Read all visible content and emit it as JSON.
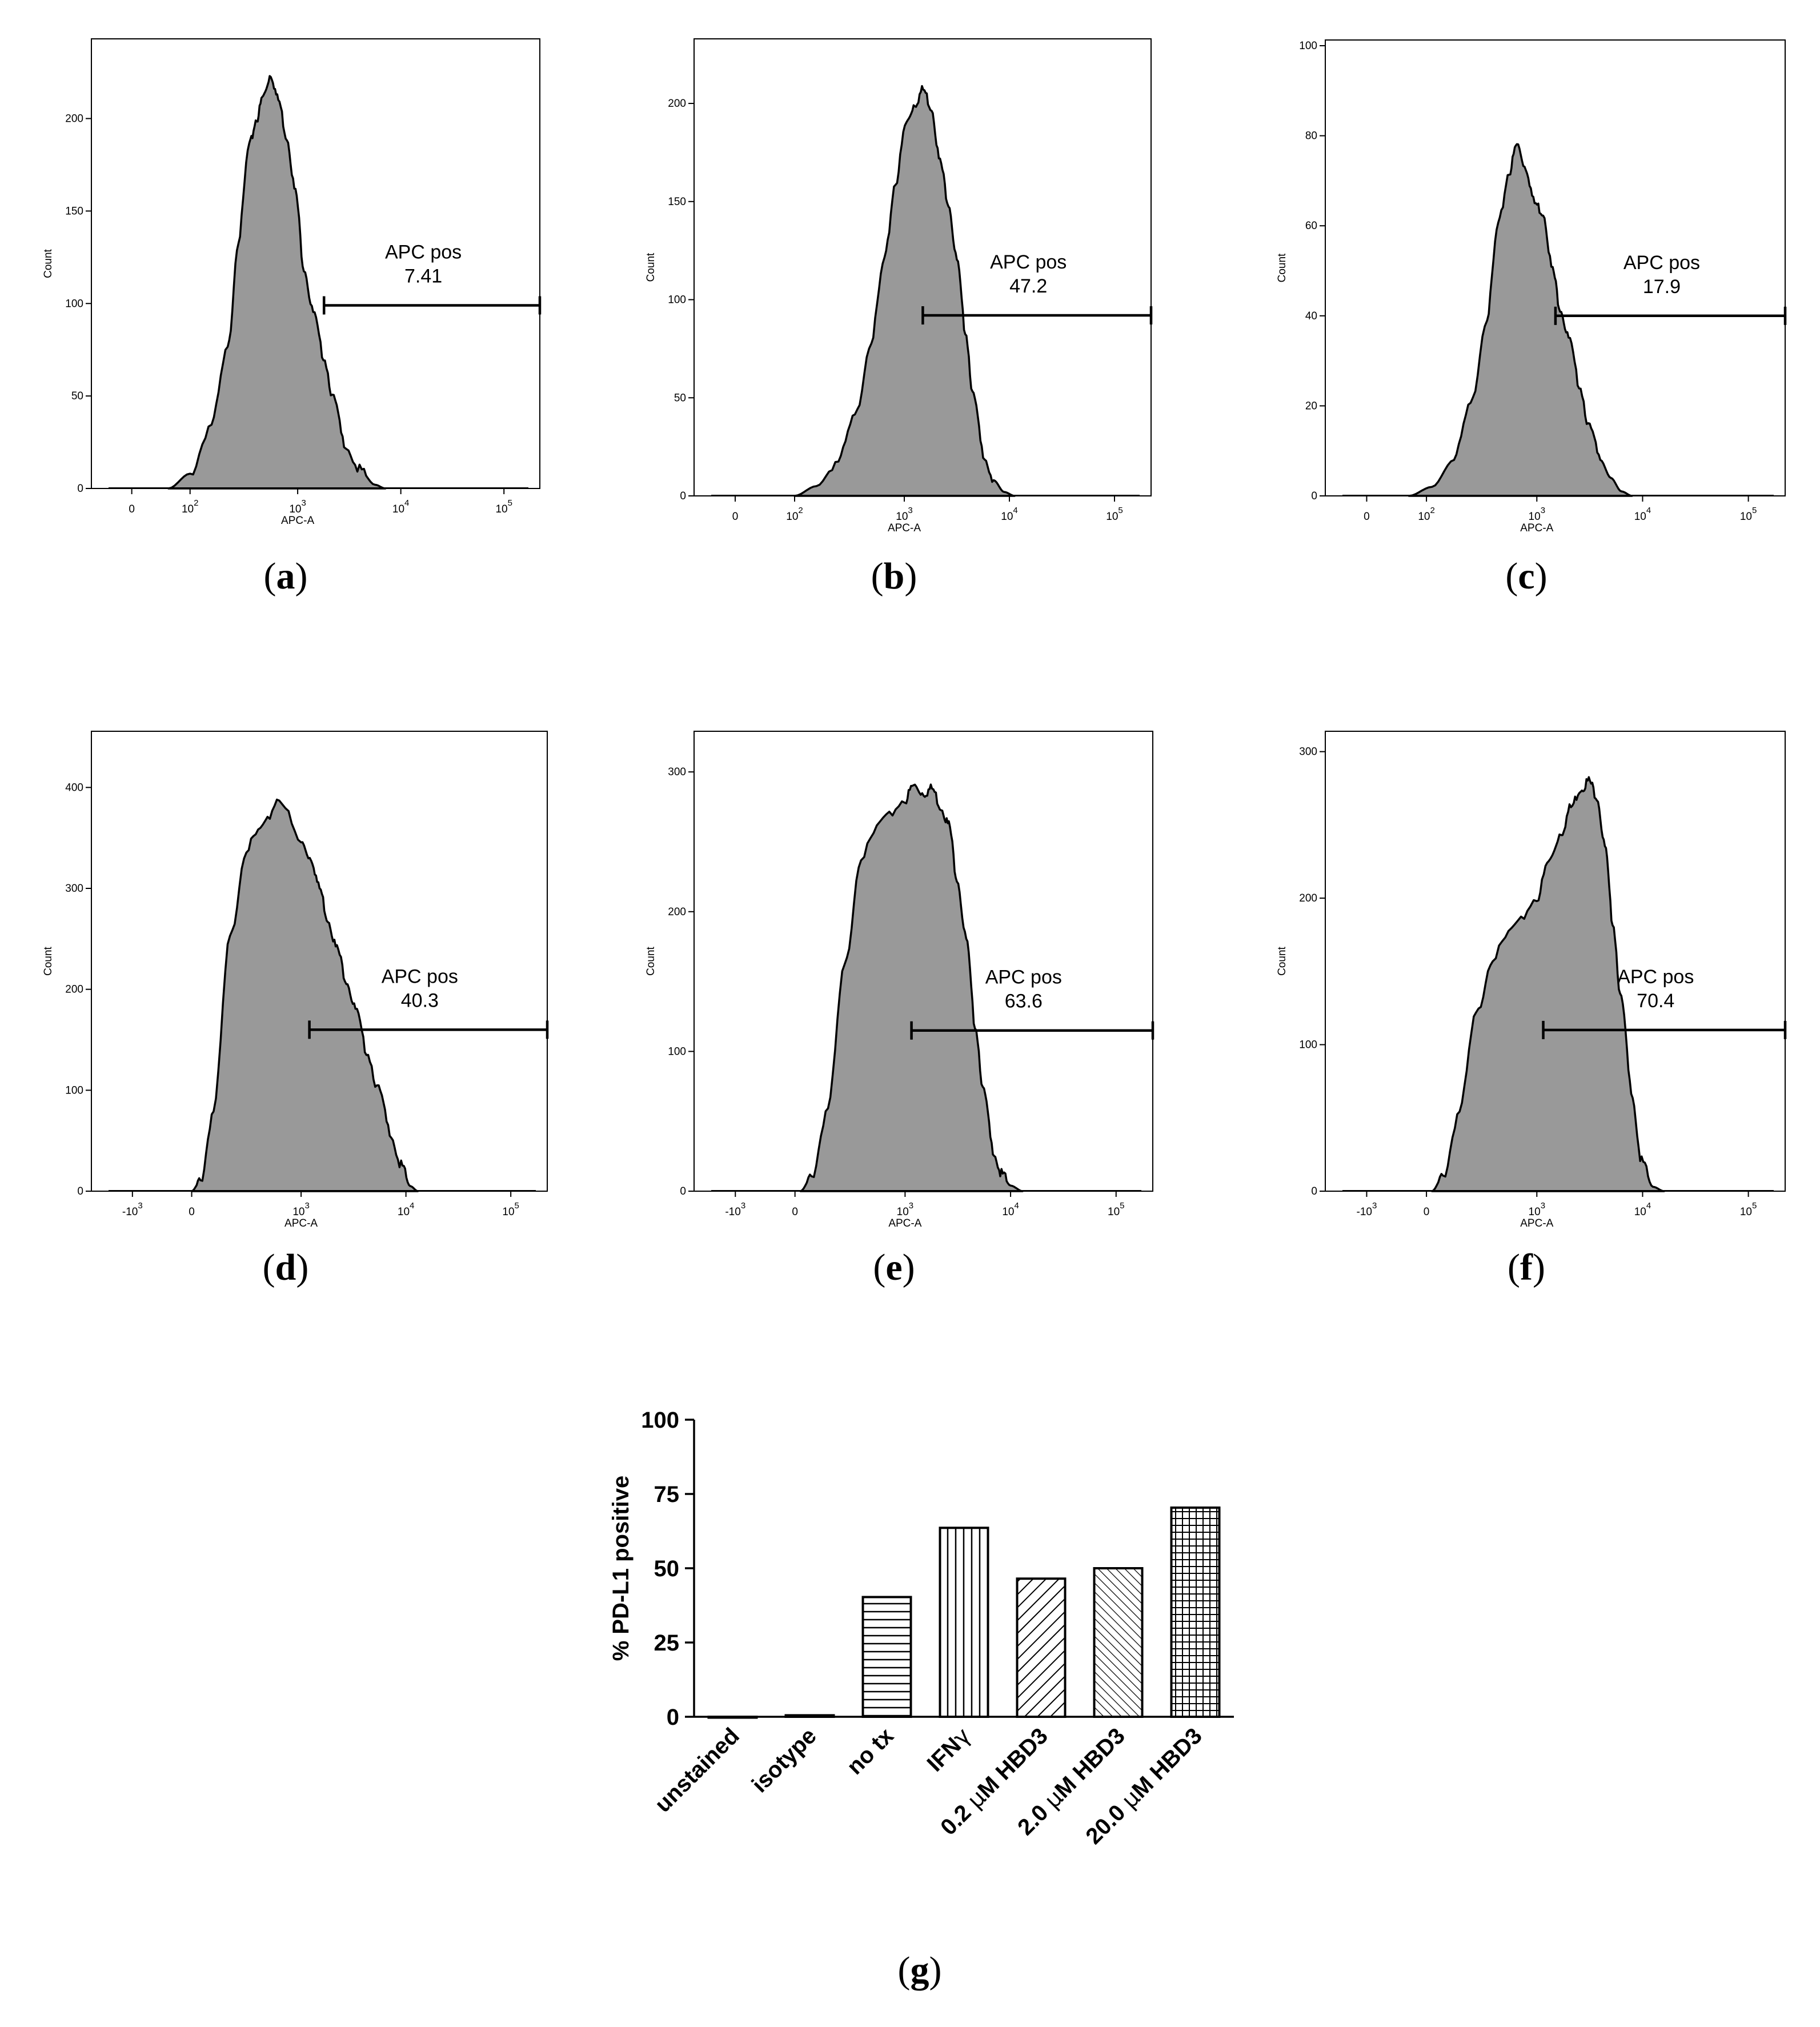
{
  "figure": {
    "panels": [
      {
        "label_open": "(",
        "label_letter": "a",
        "label_close": ")"
      },
      {
        "label_open": "(",
        "label_letter": "b",
        "label_close": ")"
      },
      {
        "label_open": "(",
        "label_letter": "c",
        "label_close": ")"
      },
      {
        "label_open": "(",
        "label_letter": "d",
        "label_close": ")"
      },
      {
        "label_open": "(",
        "label_letter": "e",
        "label_close": ")"
      },
      {
        "label_open": "(",
        "label_letter": "f",
        "label_close": ")"
      },
      {
        "label_open": "(",
        "label_letter": "g",
        "label_close": ")"
      }
    ]
  },
  "colors": {
    "histogram_fill": "#999999",
    "outline": "#000000",
    "bar_fill": "#ffffff"
  },
  "chart_data": [
    {
      "type": "area",
      "panel": "a",
      "xlabel": "APC-A",
      "ylabel": "Count",
      "x_scale": "biexponential",
      "x_ticks": [
        {
          "value": 0,
          "base": "0",
          "exp": ""
        },
        {
          "value": 100,
          "base": "10",
          "exp": "2"
        },
        {
          "value": 1000,
          "base": "10",
          "exp": "3"
        },
        {
          "value": 10000,
          "base": "10",
          "exp": "4"
        },
        {
          "value": 100000,
          "base": "10",
          "exp": "5"
        }
      ],
      "y_ticks": [
        0,
        50,
        100,
        150,
        200
      ],
      "ylim": [
        0,
        240
      ],
      "gate_name": "APC pos",
      "gate_value": "7.41",
      "gate_range": [
        1800,
        250000
      ],
      "gate_y": 99,
      "curve": {
        "x_log": [
          1.8,
          2.0,
          2.2,
          2.35,
          2.45,
          2.55,
          2.62,
          2.68,
          2.75,
          2.82,
          2.9,
          2.98,
          3.06,
          3.15,
          3.25,
          3.35,
          3.45,
          3.6,
          3.75,
          3.85
        ],
        "counts": [
          0,
          8,
          35,
          75,
          135,
          185,
          200,
          212,
          224,
          210,
          190,
          160,
          120,
          95,
          72,
          48,
          25,
          10,
          2,
          0
        ]
      }
    },
    {
      "type": "area",
      "panel": "b",
      "xlabel": "APC-A",
      "ylabel": "Count",
      "x_scale": "biexponential",
      "x_ticks": [
        {
          "value": 0,
          "base": "0",
          "exp": ""
        },
        {
          "value": 100,
          "base": "10",
          "exp": "2"
        },
        {
          "value": 1000,
          "base": "10",
          "exp": "3"
        },
        {
          "value": 10000,
          "base": "10",
          "exp": "4"
        },
        {
          "value": 100000,
          "base": "10",
          "exp": "5"
        }
      ],
      "y_ticks": [
        0,
        50,
        100,
        150,
        200
      ],
      "ylim": [
        0,
        230
      ],
      "gate_name": "APC pos",
      "gate_value": "47.2",
      "gate_range": [
        1500,
        250000
      ],
      "gate_y": 92,
      "curve": {
        "x_log": [
          2.0,
          2.2,
          2.4,
          2.55,
          2.7,
          2.82,
          2.92,
          3.02,
          3.1,
          3.18,
          3.26,
          3.34,
          3.42,
          3.5,
          3.58,
          3.66,
          3.75,
          3.85,
          3.95,
          4.05
        ],
        "counts": [
          0,
          5,
          18,
          40,
          80,
          120,
          160,
          190,
          200,
          207,
          198,
          170,
          150,
          120,
          85,
          50,
          22,
          8,
          2,
          0
        ]
      }
    },
    {
      "type": "area",
      "panel": "c",
      "xlabel": "APC-A",
      "ylabel": "Count",
      "x_scale": "biexponential",
      "x_ticks": [
        {
          "value": 0,
          "base": "0",
          "exp": ""
        },
        {
          "value": 100,
          "base": "10",
          "exp": "2"
        },
        {
          "value": 1000,
          "base": "10",
          "exp": "3"
        },
        {
          "value": 10000,
          "base": "10",
          "exp": "4"
        },
        {
          "value": 100000,
          "base": "10",
          "exp": "5"
        }
      ],
      "y_ticks": [
        0,
        20,
        40,
        60,
        80,
        100
      ],
      "ylim": [
        0,
        100
      ],
      "gate_name": "APC pos",
      "gate_value": "17.9",
      "gate_range": [
        1500,
        250000
      ],
      "gate_y": 40,
      "curve": {
        "x_log": [
          1.85,
          2.05,
          2.25,
          2.4,
          2.55,
          2.65,
          2.75,
          2.82,
          2.9,
          2.98,
          3.06,
          3.15,
          3.22,
          3.3,
          3.4,
          3.5,
          3.6,
          3.7,
          3.8,
          3.9
        ],
        "counts": [
          0,
          2,
          8,
          20,
          40,
          60,
          72,
          78,
          73,
          65,
          63,
          50,
          42,
          35,
          25,
          15,
          8,
          4,
          1,
          0
        ]
      }
    },
    {
      "type": "area",
      "panel": "d",
      "xlabel": "APC-A",
      "ylabel": "Count",
      "x_scale": "biexponential",
      "x_ticks": [
        {
          "value": -1000,
          "base": "-10",
          "exp": "3"
        },
        {
          "value": 0,
          "base": "0",
          "exp": ""
        },
        {
          "value": 1000,
          "base": "10",
          "exp": "3"
        },
        {
          "value": 10000,
          "base": "10",
          "exp": "4"
        },
        {
          "value": 100000,
          "base": "10",
          "exp": "5"
        }
      ],
      "y_ticks": [
        0,
        100,
        200,
        300,
        400
      ],
      "ylim": [
        0,
        450
      ],
      "gate_name": "APC pos",
      "gate_value": "40.3",
      "gate_range": [
        1200,
        250000
      ],
      "gate_y": 160,
      "curve": {
        "x_lin": [
          0,
          80,
          200,
          350,
          500,
          650,
          800,
          1000,
          1250,
          1500,
          1800,
          2200,
          2700,
          3300,
          4200,
          5500,
          7000,
          9000,
          11000,
          13000
        ],
        "counts": [
          0,
          10,
          80,
          250,
          340,
          360,
          390,
          345,
          330,
          300,
          270,
          240,
          210,
          180,
          140,
          100,
          60,
          25,
          5,
          0
        ]
      }
    },
    {
      "type": "area",
      "panel": "e",
      "xlabel": "APC-A",
      "ylabel": "Count",
      "x_scale": "biexponential",
      "x_ticks": [
        {
          "value": -1000,
          "base": "-10",
          "exp": "3"
        },
        {
          "value": 0,
          "base": "0",
          "exp": ""
        },
        {
          "value": 1000,
          "base": "10",
          "exp": "3"
        },
        {
          "value": 10000,
          "base": "10",
          "exp": "4"
        },
        {
          "value": 100000,
          "base": "10",
          "exp": "5"
        }
      ],
      "y_ticks": [
        0,
        100,
        200,
        300
      ],
      "ylim": [
        0,
        325
      ],
      "gate_name": "APC pos",
      "gate_value": "63.6",
      "gate_range": [
        1150,
        250000
      ],
      "gate_y": 115,
      "curve": {
        "x_lin": [
          50,
          150,
          300,
          450,
          600,
          800,
          1000,
          1200,
          1500,
          1800,
          2200,
          2600,
          3100,
          3800,
          4600,
          5600,
          6800,
          8200,
          10000,
          13000
        ],
        "counts": [
          0,
          10,
          60,
          160,
          240,
          265,
          280,
          290,
          285,
          288,
          275,
          262,
          225,
          180,
          120,
          70,
          30,
          12,
          4,
          0
        ]
      }
    },
    {
      "type": "area",
      "panel": "f",
      "xlabel": "APC-A",
      "ylabel": "Count",
      "x_scale": "biexponential",
      "x_ticks": [
        {
          "value": -1000,
          "base": "-10",
          "exp": "3"
        },
        {
          "value": 0,
          "base": "0",
          "exp": ""
        },
        {
          "value": 1000,
          "base": "10",
          "exp": "3"
        },
        {
          "value": 10000,
          "base": "10",
          "exp": "4"
        },
        {
          "value": 100000,
          "base": "10",
          "exp": "5"
        }
      ],
      "y_ticks": [
        0,
        100,
        200,
        300
      ],
      "ylim": [
        0,
        310
      ],
      "gate_name": "APC pos",
      "gate_value": "70.4",
      "gate_range": [
        1150,
        250000
      ],
      "gate_y": 110,
      "curve": {
        "x_lin": [
          50,
          150,
          300,
          450,
          600,
          800,
          1000,
          1300,
          1700,
          2100,
          2600,
          3100,
          3700,
          4400,
          5200,
          6300,
          7800,
          9800,
          12500,
          16000
        ],
        "counts": [
          0,
          10,
          55,
          120,
          160,
          180,
          200,
          225,
          245,
          262,
          275,
          280,
          270,
          235,
          185,
          130,
          70,
          20,
          3,
          0
        ]
      }
    },
    {
      "type": "bar",
      "panel": "g",
      "ylabel": "% PD-L1 positive",
      "ylim": [
        0,
        100
      ],
      "y_ticks": [
        0,
        25,
        50,
        75,
        100
      ],
      "categories": [
        {
          "pre": "unstained",
          "mu": "",
          "post": ""
        },
        {
          "pre": "isotype",
          "mu": "",
          "post": ""
        },
        {
          "pre": "no tx",
          "mu": "",
          "post": ""
        },
        {
          "pre": "IFN",
          "mu": "γ",
          "post": ""
        },
        {
          "pre": "0.2 ",
          "mu": "μ",
          "post": "M HBD3"
        },
        {
          "pre": "2.0 ",
          "mu": "μ",
          "post": "M HBD3"
        },
        {
          "pre": "20.0 ",
          "mu": "μ",
          "post": "M HBD3"
        }
      ],
      "values": [
        0,
        0.5,
        40.3,
        63.6,
        46.5,
        50.0,
        70.4
      ],
      "patterns": [
        "none",
        "none",
        "horizontal",
        "vertical",
        "diagonal",
        "diagonal-fine",
        "grid"
      ]
    }
  ]
}
